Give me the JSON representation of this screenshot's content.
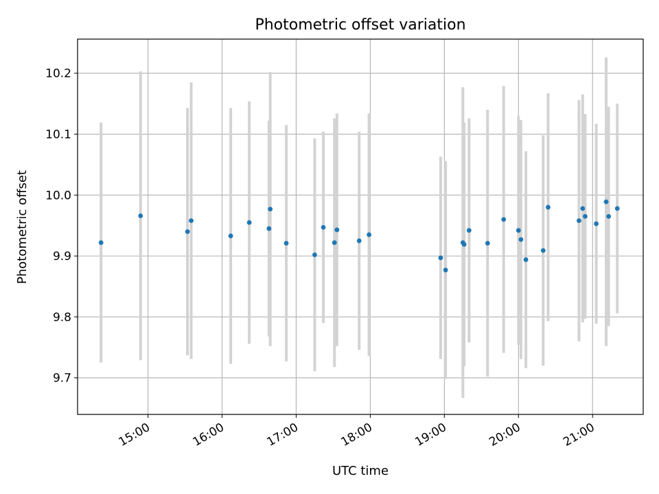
{
  "chart_data": {
    "type": "scatter",
    "title": "Photometric offset variation",
    "xlabel": "UTC time",
    "ylabel": "Photometric offset",
    "x_ticks": [
      "15:00",
      "16:00",
      "17:00",
      "18:00",
      "19:00",
      "20:00",
      "21:00"
    ],
    "y_ticks": [
      "9.7",
      "9.8",
      "9.9",
      "10.0",
      "10.1",
      "10.2"
    ],
    "xlim": [
      "14:03",
      "21:41"
    ],
    "ylim": [
      9.64,
      10.256
    ],
    "grid": true,
    "colors": {
      "point": "#1f77b4",
      "errorbar": "#d3d3d3",
      "grid": "#b0b0b0"
    },
    "points": [
      {
        "x": "14:22",
        "y": 9.922,
        "yerr": 0.197
      },
      {
        "x": "14:54",
        "y": 9.966,
        "yerr": 0.237
      },
      {
        "x": "15:32",
        "y": 9.94,
        "yerr": 0.203
      },
      {
        "x": "15:35",
        "y": 9.958,
        "yerr": 0.227
      },
      {
        "x": "16:07",
        "y": 9.933,
        "yerr": 0.21
      },
      {
        "x": "16:22",
        "y": 9.955,
        "yerr": 0.199
      },
      {
        "x": "16:38",
        "y": 9.945,
        "yerr": 0.177
      },
      {
        "x": "16:39",
        "y": 9.977,
        "yerr": 0.225
      },
      {
        "x": "16:52",
        "y": 9.921,
        "yerr": 0.194
      },
      {
        "x": "17:15",
        "y": 9.902,
        "yerr": 0.191
      },
      {
        "x": "17:22",
        "y": 9.947,
        "yerr": 0.157
      },
      {
        "x": "17:31",
        "y": 9.922,
        "yerr": 0.204
      },
      {
        "x": "17:33",
        "y": 9.943,
        "yerr": 0.191
      },
      {
        "x": "17:51",
        "y": 9.925,
        "yerr": 0.179
      },
      {
        "x": "17:59",
        "y": 9.935,
        "yerr": 0.199
      },
      {
        "x": "18:57",
        "y": 9.897,
        "yerr": 0.166
      },
      {
        "x": "19:01",
        "y": 9.877,
        "yerr": 0.179
      },
      {
        "x": "19:15",
        "y": 9.922,
        "yerr": 0.255
      },
      {
        "x": "19:16",
        "y": 9.919,
        "yerr": 0.2
      },
      {
        "x": "19:20",
        "y": 9.942,
        "yerr": 0.184
      },
      {
        "x": "19:35",
        "y": 9.921,
        "yerr": 0.219
      },
      {
        "x": "19:48",
        "y": 9.96,
        "yerr": 0.219
      },
      {
        "x": "20:00",
        "y": 9.942,
        "yerr": 0.188
      },
      {
        "x": "20:02",
        "y": 9.927,
        "yerr": 0.196
      },
      {
        "x": "20:06",
        "y": 9.894,
        "yerr": 0.178
      },
      {
        "x": "20:20",
        "y": 9.909,
        "yerr": 0.189
      },
      {
        "x": "20:24",
        "y": 9.98,
        "yerr": 0.187
      },
      {
        "x": "20:49",
        "y": 9.958,
        "yerr": 0.198
      },
      {
        "x": "20:52",
        "y": 9.978,
        "yerr": 0.187
      },
      {
        "x": "20:54",
        "y": 9.965,
        "yerr": 0.168
      },
      {
        "x": "21:03",
        "y": 9.953,
        "yerr": 0.164
      },
      {
        "x": "21:11",
        "y": 9.989,
        "yerr": 0.237
      },
      {
        "x": "21:13",
        "y": 9.965,
        "yerr": 0.18
      },
      {
        "x": "21:20",
        "y": 9.978,
        "yerr": 0.172
      }
    ]
  }
}
